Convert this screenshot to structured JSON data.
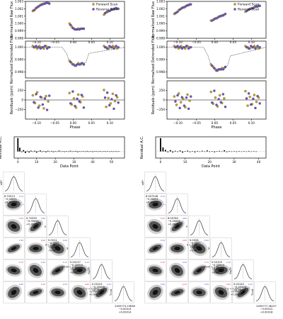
{
  "colors": {
    "forward": "#c9a227",
    "reverse": "#6a55c4",
    "model": "#555555",
    "axis": "#000000",
    "blue_label": "#3b5bd6",
    "red_label": "#d43a3a"
  },
  "legend": {
    "forward": "Forward Scan",
    "reverse": "Reverse Scan"
  },
  "panel_labels": {
    "raw": "Normalised Raw Flux",
    "detrended": "Normalised Detrended Flux",
    "residuals": "Residuals (ppm)",
    "phase": "Phase",
    "acf": "Residual A.C.",
    "data_point": "Data Point"
  },
  "chart_data": [
    {
      "type": "scatter",
      "id": "left-raw",
      "ylabel": "Normalised Raw Flux",
      "ylim": [
        0.998,
        1.003
      ],
      "yticks": [
        "0.998",
        "0.999",
        "1.000",
        "1.001",
        "1.002",
        "1.003"
      ],
      "xlim": [
        -0.13,
        0.14
      ],
      "xticks": [
        "−0.10",
        "−0.05",
        "0.00",
        "0.05",
        "0.10"
      ],
      "legend_position": "top-right",
      "series": [
        {
          "name": "Forward Scan",
          "x": [
            -0.11,
            -0.104,
            -0.098,
            -0.092,
            -0.086,
            -0.08,
            -0.074,
            -0.068,
            -0.01,
            -0.004,
            0.002,
            0.008,
            0.014,
            0.02,
            0.026,
            0.084,
            0.09,
            0.096,
            0.102,
            0.108,
            0.114,
            0.12
          ],
          "y": [
            1.0017,
            1.0019,
            1.0022,
            1.0024,
            1.0026,
            1.0027,
            1.0028,
            1.0028,
            1.0,
            0.9996,
            0.9993,
            0.9992,
            0.9993,
            0.9993,
            0.9993,
            1.0012,
            1.0015,
            1.0017,
            1.0018,
            1.0019,
            1.002,
            1.002
          ]
        },
        {
          "name": "Reverse Scan",
          "x": [
            -0.107,
            -0.101,
            -0.095,
            -0.089,
            -0.083,
            -0.077,
            -0.071,
            -0.065,
            -0.007,
            -0.001,
            0.005,
            0.011,
            0.017,
            0.023,
            0.029,
            0.087,
            0.093,
            0.099,
            0.105,
            0.111,
            0.117,
            0.123
          ],
          "y": [
            1.0018,
            1.0021,
            1.0023,
            1.0025,
            1.0026,
            1.0027,
            1.0028,
            1.0027,
            0.9998,
            0.9994,
            0.9992,
            0.9992,
            0.9992,
            0.9993,
            0.9993,
            1.0014,
            1.0016,
            1.0017,
            1.0019,
            1.002,
            1.0021,
            1.002
          ]
        }
      ]
    },
    {
      "type": "scatter",
      "id": "left-detrended",
      "ylabel": "Normalised Detrended Flux",
      "ylim": [
        0.9975,
        1.0005
      ],
      "yticks": [
        "0.998",
        "0.999",
        "1.000"
      ],
      "xlim": [
        -0.13,
        0.14
      ],
      "model": {
        "x": [
          -0.13,
          -0.03,
          -0.018,
          -0.01,
          0.0,
          0.025,
          0.035,
          0.043,
          0.14
        ],
        "y": [
          1.0,
          1.0,
          0.9995,
          0.9988,
          0.9986,
          0.9986,
          0.9988,
          0.9995,
          1.0
        ]
      },
      "series": [
        {
          "name": "Forward Scan",
          "x": [
            -0.11,
            -0.104,
            -0.098,
            -0.092,
            -0.086,
            -0.08,
            -0.074,
            -0.068,
            -0.01,
            -0.004,
            0.002,
            0.008,
            0.014,
            0.02,
            0.026,
            0.084,
            0.09,
            0.096,
            0.102,
            0.108,
            0.114,
            0.12
          ],
          "y": [
            1.0001,
            1.0,
            0.9999,
            1.0001,
            1.0,
            0.9999,
            1.0001,
            1.0,
            0.9989,
            0.9987,
            0.9986,
            0.9985,
            0.9987,
            0.9986,
            0.9987,
            1.0001,
            1.0,
            0.9999,
            1.0,
            1.0001,
            1.0,
            0.9999
          ]
        },
        {
          "name": "Reverse Scan",
          "x": [
            -0.107,
            -0.101,
            -0.095,
            -0.089,
            -0.083,
            -0.077,
            -0.071,
            -0.065,
            -0.007,
            -0.001,
            0.005,
            0.011,
            0.017,
            0.023,
            0.029,
            0.087,
            0.093,
            0.099,
            0.105,
            0.111,
            0.117,
            0.123
          ],
          "y": [
            1.0,
            1.0001,
            1.0,
            0.9999,
            1.0,
            1.0001,
            0.9999,
            1.0,
            0.9988,
            0.9986,
            0.9985,
            0.9986,
            0.9986,
            0.9987,
            0.9986,
            1.0,
            0.9999,
            1.0001,
            1.0,
            0.9999,
            1.0001,
            1.0
          ]
        }
      ]
    },
    {
      "type": "scatter",
      "id": "left-residuals",
      "ylabel": "Residuals (ppm)",
      "ylim": [
        -500,
        500
      ],
      "yticks": [
        "−250",
        "0",
        "250"
      ],
      "xlabel": "Phase",
      "xlim": [
        -0.13,
        0.14
      ],
      "xticks": [
        "−0.10",
        "−0.05",
        "0.00",
        "0.05",
        "0.10"
      ],
      "series": [
        {
          "name": "Forward Scan",
          "x": [
            -0.11,
            -0.104,
            -0.098,
            -0.092,
            -0.086,
            -0.08,
            -0.074,
            -0.068,
            -0.01,
            -0.004,
            0.002,
            0.008,
            0.014,
            0.02,
            0.026,
            0.084,
            0.09,
            0.096,
            0.102,
            0.108,
            0.114,
            0.12
          ],
          "y": [
            120,
            -80,
            200,
            -150,
            60,
            -220,
            100,
            -40,
            180,
            -120,
            40,
            -200,
            140,
            -60,
            90,
            260,
            -180,
            50,
            -90,
            160,
            -30,
            70
          ]
        },
        {
          "name": "Reverse Scan",
          "x": [
            -0.107,
            -0.101,
            -0.095,
            -0.089,
            -0.083,
            -0.077,
            -0.071,
            -0.065,
            -0.007,
            -0.001,
            0.005,
            0.011,
            0.017,
            0.023,
            0.029,
            0.087,
            0.093,
            0.099,
            0.105,
            0.111,
            0.117,
            0.123
          ],
          "y": [
            -60,
            150,
            -200,
            80,
            -120,
            40,
            -260,
            110,
            -90,
            220,
            -160,
            30,
            -40,
            130,
            -200,
            60,
            190,
            -140,
            20,
            -230,
            120,
            -70
          ]
        }
      ]
    },
    {
      "type": "scatter",
      "id": "right-raw",
      "ylabel": "Normalised Raw Flux",
      "ylim": [
        0.998,
        1.003
      ],
      "yticks": [
        "0.998",
        "0.999",
        "1.000",
        "1.001",
        "1.002",
        "1.003"
      ],
      "xlim": [
        -0.13,
        0.14
      ],
      "xticks": [
        "−0.10",
        "−0.05",
        "0.00",
        "0.05",
        "0.10"
      ],
      "legend_position": "top-right",
      "series": [
        {
          "name": "Forward Scan",
          "x": [
            -0.11,
            -0.104,
            -0.098,
            -0.092,
            -0.086,
            -0.08,
            -0.074,
            -0.068,
            -0.01,
            -0.004,
            0.002,
            0.008,
            0.014,
            0.02,
            0.026,
            0.084,
            0.09,
            0.096,
            0.102,
            0.108,
            0.114,
            0.12
          ],
          "y": [
            1.0013,
            1.0015,
            1.0018,
            1.002,
            1.0022,
            1.0023,
            1.0025,
            1.0026,
            1.0004,
            1.0005,
            1.0007,
            1.0008,
            1.001,
            1.0011,
            1.0012,
            1.0016,
            1.0018,
            1.002,
            1.0021,
            1.0022,
            1.0023,
            1.0024
          ]
        },
        {
          "name": "Reverse Scan",
          "x": [
            -0.107,
            -0.101,
            -0.095,
            -0.089,
            -0.083,
            -0.077,
            -0.071,
            -0.065,
            -0.007,
            -0.001,
            0.005,
            0.011,
            0.017,
            0.023,
            0.029,
            0.087,
            0.093,
            0.099,
            0.105,
            0.111,
            0.117,
            0.123
          ],
          "y": [
            1.0014,
            1.0016,
            1.0019,
            1.0021,
            1.0022,
            1.0024,
            1.0025,
            1.0026,
            1.0004,
            1.0006,
            1.0007,
            1.0009,
            1.001,
            1.0011,
            1.0013,
            1.0017,
            1.0019,
            1.002,
            1.0021,
            1.0023,
            1.0023,
            1.0024
          ]
        }
      ]
    },
    {
      "type": "scatter",
      "id": "right-detrended",
      "ylabel": "Normalised Detrended Flux",
      "ylim": [
        0.9975,
        1.0005
      ],
      "yticks": [
        "0.998",
        "0.999",
        "1.000"
      ],
      "xlim": [
        -0.13,
        0.14
      ],
      "model": {
        "x": [
          -0.13,
          -0.03,
          -0.018,
          -0.01,
          0.0,
          0.025,
          0.035,
          0.043,
          0.14
        ],
        "y": [
          1.0,
          1.0,
          0.9993,
          0.9985,
          0.9982,
          0.9982,
          0.9985,
          0.9993,
          1.0
        ]
      },
      "series": [
        {
          "name": "Forward Scan",
          "x": [
            -0.11,
            -0.104,
            -0.098,
            -0.092,
            -0.086,
            -0.08,
            -0.074,
            -0.068,
            -0.01,
            -0.004,
            0.002,
            0.008,
            0.014,
            0.02,
            0.026,
            0.084,
            0.09,
            0.096,
            0.102,
            0.108,
            0.114,
            0.12
          ],
          "y": [
            1.0001,
            1.0,
            0.9999,
            1.0001,
            1.0,
            0.9999,
            1.0001,
            1.0,
            0.9986,
            0.9984,
            0.9982,
            0.9981,
            0.9982,
            0.9983,
            0.9983,
            1.0001,
            1.0,
            0.9999,
            1.0,
            1.0001,
            1.0,
            0.9999
          ]
        },
        {
          "name": "Reverse Scan",
          "x": [
            -0.107,
            -0.101,
            -0.095,
            -0.089,
            -0.083,
            -0.077,
            -0.071,
            -0.065,
            -0.007,
            -0.001,
            0.005,
            0.011,
            0.017,
            0.023,
            0.029,
            0.087,
            0.093,
            0.099,
            0.105,
            0.111,
            0.117,
            0.123
          ],
          "y": [
            1.0,
            1.0001,
            1.0,
            0.9999,
            1.0,
            1.0001,
            0.9999,
            1.0,
            0.9985,
            0.9983,
            0.9981,
            0.9982,
            0.9982,
            0.9982,
            0.9984,
            1.0,
            0.9999,
            1.0001,
            1.0,
            0.9999,
            1.0001,
            1.0
          ]
        }
      ]
    },
    {
      "type": "scatter",
      "id": "right-residuals",
      "ylabel": "Residuals (ppm)",
      "ylim": [
        -500,
        500
      ],
      "yticks": [
        "−250",
        "0",
        "250"
      ],
      "xlabel": "Phase",
      "xlim": [
        -0.13,
        0.14
      ],
      "xticks": [
        "−0.10",
        "−0.05",
        "0.00",
        "0.05",
        "0.10"
      ],
      "series": [
        {
          "name": "Forward Scan",
          "x": [
            -0.11,
            -0.104,
            -0.098,
            -0.092,
            -0.086,
            -0.08,
            -0.074,
            -0.068,
            -0.01,
            -0.004,
            0.002,
            0.008,
            0.014,
            0.02,
            0.026,
            0.084,
            0.09,
            0.096,
            0.102,
            0.108,
            0.114,
            0.12
          ],
          "y": [
            90,
            -130,
            170,
            -60,
            30,
            -190,
            140,
            -20,
            210,
            -100,
            60,
            -170,
            120,
            -80,
            40,
            230,
            -150,
            80,
            -110,
            130,
            -50,
            60
          ]
        },
        {
          "name": "Reverse Scan",
          "x": [
            -0.107,
            -0.101,
            -0.095,
            -0.089,
            -0.083,
            -0.077,
            -0.071,
            -0.065,
            -0.007,
            -0.001,
            0.005,
            0.011,
            0.017,
            0.023,
            0.029,
            0.087,
            0.093,
            0.099,
            0.105,
            0.111,
            0.117,
            0.123
          ],
          "y": [
            -40,
            120,
            -210,
            70,
            -150,
            60,
            -230,
            90,
            -70,
            240,
            -130,
            20,
            -60,
            150,
            -180,
            40,
            170,
            -120,
            30,
            -210,
            100,
            -90
          ]
        }
      ]
    },
    {
      "type": "bar",
      "id": "left-acf",
      "ylabel": "Residual A.C.",
      "xlabel": "Data Point",
      "ylim": [
        -0.5,
        1.1
      ],
      "xlim": [
        -2,
        57
      ],
      "xticks": [
        "0",
        "10",
        "20",
        "30",
        "40",
        "50"
      ],
      "values": [
        1.0,
        0.28,
        -0.05,
        0.1,
        -0.12,
        0.04,
        -0.08,
        0.06,
        -0.03,
        0.05,
        -0.09,
        0.02,
        0.07,
        -0.04,
        0.03,
        -0.06,
        0.05,
        -0.02,
        0.04,
        -0.05,
        0.02,
        -0.03,
        0.06,
        -0.01,
        0.03,
        -0.04,
        0.02,
        -0.02,
        0.05,
        -0.03,
        0.01,
        0.04,
        -0.05,
        0.02,
        -0.01,
        0.03,
        -0.02,
        0.04,
        -0.03,
        0.02,
        -0.04,
        0.01,
        0.03,
        -0.02,
        0.02,
        -0.01,
        0.03,
        -0.02,
        0.01,
        -0.03,
        0.02,
        -0.01,
        0.02,
        -0.02,
        0.01
      ]
    },
    {
      "type": "bar",
      "id": "right-acf",
      "ylabel": "Residual A.C.",
      "xlabel": "Data Point",
      "ylim": [
        -0.5,
        1.1
      ],
      "xlim": [
        -2,
        43
      ],
      "xticks": [
        "0",
        "10",
        "20",
        "30",
        "40"
      ],
      "values": [
        1.0,
        0.3,
        0.12,
        -0.06,
        0.1,
        -0.08,
        0.05,
        -0.04,
        0.07,
        -0.09,
        0.03,
        0.06,
        -0.05,
        0.02,
        -0.07,
        0.04,
        -0.03,
        0.05,
        -0.02,
        0.08,
        -0.04,
        0.03,
        -0.06,
        0.02,
        0.04,
        -0.03,
        0.09,
        -0.05,
        0.02,
        -0.02,
        0.03,
        -0.04,
        0.02,
        -0.01,
        0.03,
        -0.02,
        0.04,
        -0.01,
        0.02,
        -0.03
      ]
    }
  ],
  "corner_left": {
    "n": 6,
    "labels": [
      {
        "name": "a/R*",
        "value": "8.70313",
        "minus": "−0.00051",
        "plus": "+0.00054"
      },
      {
        "name": "i",
        "value": "0.70339",
        "minus": "−0.00051",
        "plus": "+0.00054"
      },
      {
        "name": "e",
        "value": "0.0011",
        "minus": "−0.0005",
        "plus": "+0.0006"
      },
      {
        "name": "ω",
        "value": "0.00137",
        "minus": "−0.00004",
        "plus": "+0.00004"
      },
      {
        "name": "Rp/R*",
        "value": "0.00191",
        "minus": "−0.00005",
        "plus": "+0.00006"
      },
      {
        "name": "Tmid",
        "value": "2459773.19838",
        "minus": "−0.00014",
        "plus": "+0.00014"
      }
    ],
    "extra_labels": [
      {
        "name": "σ",
        "value": "2.98",
        "minus": "−0.04",
        "plus": "+0.05"
      },
      {
        "name": "Pmid",
        "value": "2.02",
        "minus": "−0.04",
        "plus": "+0.05"
      },
      {
        "name": "T_0",
        "value": "0.0443",
        "minus": "−0.0003",
        "plus": "+0.0003"
      }
    ]
  },
  "corner_right": {
    "n": 6,
    "labels": [
      {
        "name": "a/R*",
        "value": "8.907546",
        "minus": "−0.00051",
        "plus": "+0.00054"
      },
      {
        "name": "i",
        "value": "8.90760",
        "minus": "−0.00051",
        "plus": "+0.00054"
      },
      {
        "name": "e",
        "value": "0.0028",
        "minus": "−0.0007",
        "plus": "+0.0012"
      },
      {
        "name": "ω",
        "value": "0.00109",
        "minus": "−0.00004",
        "plus": "+0.00008"
      },
      {
        "name": "Rp/R*",
        "value": "0.00145",
        "minus": "−0.00009",
        "plus": "+0.00005"
      },
      {
        "name": "Tmid",
        "value": "2459777.36157",
        "minus": "−0.00012",
        "plus": "+0.00018"
      }
    ],
    "extra_labels": [
      {
        "name": "σ",
        "value": "2.06",
        "minus": "−0.04",
        "plus": "+0.05"
      },
      {
        "name": "Pmid",
        "value": "1.90",
        "minus": "−0.08",
        "plus": "+0.08"
      },
      {
        "name": "T_0",
        "value": "0.0455",
        "minus": "−0.0007",
        "plus": "+0.0005"
      }
    ]
  }
}
